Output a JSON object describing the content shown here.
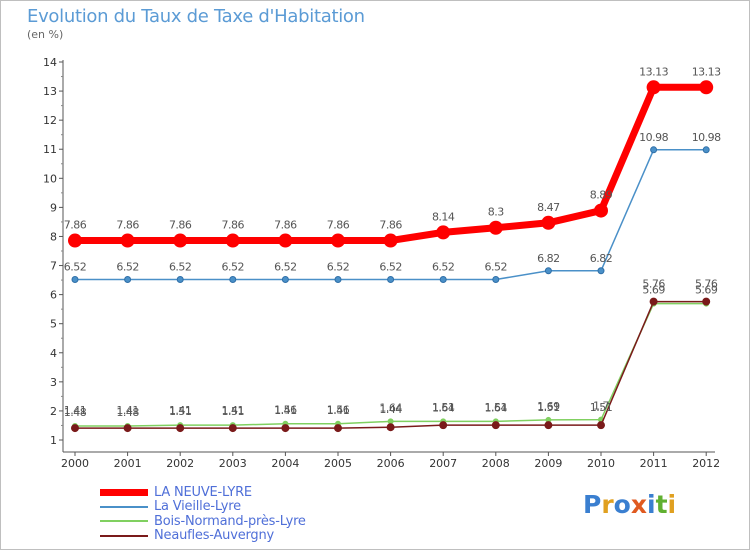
{
  "title": "Evolution du Taux de Taxe d'Habitation",
  "subtitle": "(en %)",
  "logo": {
    "text": "Proxiti",
    "colors": [
      "#3a7fd0",
      "#e0a020",
      "#3a7fd0",
      "#e05a20",
      "#3a7fd0",
      "#60b030",
      "#e0a020"
    ]
  },
  "chart_data": {
    "type": "line",
    "x": [
      "2000",
      "2001",
      "2002",
      "2003",
      "2004",
      "2005",
      "2006",
      "2007",
      "2008",
      "2009",
      "2010",
      "2011",
      "2012"
    ],
    "ylim": [
      1,
      14
    ],
    "yticks": [
      "1",
      "2",
      "3",
      "4",
      "5",
      "6",
      "7",
      "8",
      "9",
      "10",
      "11",
      "12",
      "13",
      "14"
    ],
    "grid": false,
    "legend_position": "bottom-left",
    "series": [
      {
        "name": "LA NEUVE-LYRE",
        "color": "#ff0000",
        "values": [
          7.86,
          7.86,
          7.86,
          7.86,
          7.86,
          7.86,
          7.86,
          8.14,
          8.3,
          8.47,
          8.89,
          13.13,
          13.13
        ],
        "labels": [
          "7.86",
          "7.86",
          "7.86",
          "7.86",
          "7.86",
          "7.86",
          "7.86",
          "8.14",
          "8.3",
          "8.47",
          "8.89",
          "13.13",
          "13.13"
        ]
      },
      {
        "name": "La Vieille-Lyre",
        "color": "#4a90c8",
        "values": [
          6.52,
          6.52,
          6.52,
          6.52,
          6.52,
          6.52,
          6.52,
          6.52,
          6.52,
          6.82,
          6.82,
          10.98,
          10.98
        ],
        "labels": [
          "6.52",
          "6.52",
          "6.52",
          "6.52",
          "6.52",
          "6.52",
          "6.52",
          "6.52",
          "6.52",
          "6.82",
          "6.82",
          "10.98",
          "10.98"
        ]
      },
      {
        "name": "Bois-Normand-près-Lyre",
        "color": "#80d060",
        "values": [
          1.48,
          1.48,
          1.51,
          1.51,
          1.56,
          1.56,
          1.64,
          1.64,
          1.64,
          1.69,
          1.7,
          5.69,
          5.69
        ],
        "labels": [
          "1.48",
          "1.48",
          "1.51",
          "1.51",
          "1.56",
          "1.56",
          "1.64",
          "1.64",
          "1.64",
          "1.69",
          "1.7",
          "5.69",
          "5.69"
        ]
      },
      {
        "name": "Neaufles-Auvergny",
        "color": "#7a1a1a",
        "values": [
          1.41,
          1.41,
          1.41,
          1.41,
          1.41,
          1.41,
          1.44,
          1.51,
          1.51,
          1.51,
          1.51,
          5.76,
          5.76
        ],
        "labels": [
          "1.41",
          "1.41",
          "1.41",
          "1.41",
          "1.41",
          "1.41",
          "1.44",
          "1.51",
          "1.51",
          "1.51",
          "1.51",
          "5.76",
          "5.76"
        ]
      }
    ]
  }
}
